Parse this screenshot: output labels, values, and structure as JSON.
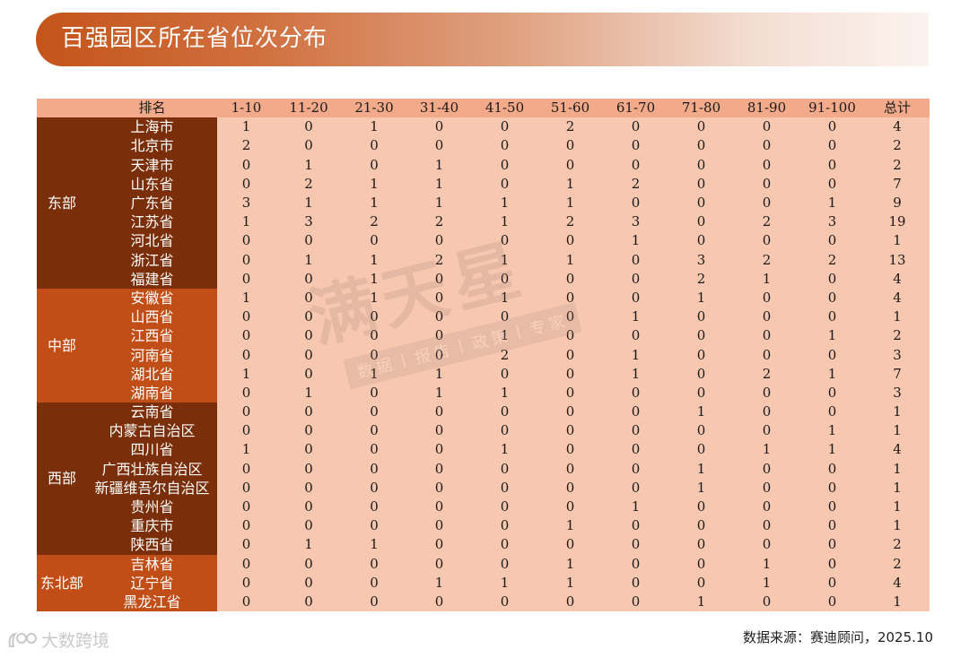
{
  "title": "百强园区所在省位次分布",
  "header": {
    "rank_label": "排名",
    "columns": [
      "1-10",
      "11-20",
      "21-30",
      "31-40",
      "41-50",
      "51-60",
      "61-70",
      "71-80",
      "81-90",
      "91-100",
      "总计"
    ]
  },
  "groups": [
    {
      "region": "东部",
      "theme": "east",
      "rows": [
        {
          "province": "上海市",
          "values": [
            "1",
            "0",
            "1",
            "0",
            "0",
            "2",
            "0",
            "0",
            "0",
            "0",
            "4"
          ]
        },
        {
          "province": "北京市",
          "values": [
            "2",
            "0",
            "0",
            "0",
            "0",
            "0",
            "0",
            "0",
            "0",
            "0",
            "2"
          ]
        },
        {
          "province": "天津市",
          "values": [
            "0",
            "1",
            "0",
            "1",
            "0",
            "0",
            "0",
            "0",
            "0",
            "0",
            "2"
          ]
        },
        {
          "province": "山东省",
          "values": [
            "0",
            "2",
            "1",
            "1",
            "0",
            "1",
            "2",
            "0",
            "0",
            "0",
            "7"
          ]
        },
        {
          "province": "广东省",
          "values": [
            "3",
            "1",
            "1",
            "1",
            "1",
            "1",
            "0",
            "0",
            "0",
            "1",
            "9"
          ]
        },
        {
          "province": "江苏省",
          "values": [
            "1",
            "3",
            "2",
            "2",
            "1",
            "2",
            "3",
            "0",
            "2",
            "3",
            "19"
          ]
        },
        {
          "province": "河北省",
          "values": [
            "0",
            "0",
            "0",
            "0",
            "0",
            "0",
            "1",
            "0",
            "0",
            "0",
            "1"
          ]
        },
        {
          "province": "浙江省",
          "values": [
            "0",
            "1",
            "1",
            "2",
            "1",
            "1",
            "0",
            "3",
            "2",
            "2",
            "13"
          ]
        },
        {
          "province": "福建省",
          "values": [
            "0",
            "0",
            "1",
            "0",
            "0",
            "0",
            "0",
            "2",
            "1",
            "0",
            "4"
          ]
        }
      ]
    },
    {
      "region": "中部",
      "theme": "central",
      "rows": [
        {
          "province": "安徽省",
          "values": [
            "1",
            "0",
            "1",
            "0",
            "1",
            "0",
            "0",
            "1",
            "0",
            "0",
            "4"
          ]
        },
        {
          "province": "山西省",
          "values": [
            "0",
            "0",
            "0",
            "0",
            "0",
            "0",
            "1",
            "0",
            "0",
            "0",
            "1"
          ]
        },
        {
          "province": "江西省",
          "values": [
            "0",
            "0",
            "0",
            "0",
            "1",
            "0",
            "0",
            "0",
            "0",
            "1",
            "2"
          ]
        },
        {
          "province": "河南省",
          "values": [
            "0",
            "0",
            "0",
            "0",
            "2",
            "0",
            "1",
            "0",
            "0",
            "0",
            "3"
          ]
        },
        {
          "province": "湖北省",
          "values": [
            "1",
            "0",
            "1",
            "1",
            "0",
            "0",
            "1",
            "0",
            "2",
            "1",
            "7"
          ]
        },
        {
          "province": "湖南省",
          "values": [
            "0",
            "1",
            "0",
            "1",
            "1",
            "0",
            "0",
            "0",
            "0",
            "0",
            "3"
          ]
        }
      ]
    },
    {
      "region": "西部",
      "theme": "west",
      "rows": [
        {
          "province": "云南省",
          "values": [
            "0",
            "0",
            "0",
            "0",
            "0",
            "0",
            "0",
            "1",
            "0",
            "0",
            "1"
          ]
        },
        {
          "province": "内蒙古自治区",
          "values": [
            "0",
            "0",
            "0",
            "0",
            "0",
            "0",
            "0",
            "0",
            "0",
            "1",
            "1"
          ]
        },
        {
          "province": "四川省",
          "values": [
            "1",
            "0",
            "0",
            "0",
            "1",
            "0",
            "0",
            "0",
            "1",
            "1",
            "4"
          ]
        },
        {
          "province": "广西壮族自治区",
          "values": [
            "0",
            "0",
            "0",
            "0",
            "0",
            "0",
            "0",
            "1",
            "0",
            "0",
            "1"
          ]
        },
        {
          "province": "新疆维吾尔自治区",
          "values": [
            "0",
            "0",
            "0",
            "0",
            "0",
            "0",
            "0",
            "1",
            "0",
            "0",
            "1"
          ]
        },
        {
          "province": "贵州省",
          "values": [
            "0",
            "0",
            "0",
            "0",
            "0",
            "0",
            "1",
            "0",
            "0",
            "0",
            "1"
          ]
        },
        {
          "province": "重庆市",
          "values": [
            "0",
            "0",
            "0",
            "0",
            "0",
            "1",
            "0",
            "0",
            "0",
            "0",
            "1"
          ]
        },
        {
          "province": "陕西省",
          "values": [
            "0",
            "1",
            "1",
            "0",
            "0",
            "0",
            "0",
            "0",
            "0",
            "0",
            "2"
          ]
        }
      ]
    },
    {
      "region": "东北部",
      "theme": "ne",
      "rows": [
        {
          "province": "吉林省",
          "values": [
            "0",
            "0",
            "0",
            "0",
            "0",
            "1",
            "0",
            "0",
            "1",
            "0",
            "2"
          ]
        },
        {
          "province": "辽宁省",
          "values": [
            "0",
            "0",
            "0",
            "1",
            "1",
            "1",
            "0",
            "0",
            "1",
            "0",
            "4"
          ]
        },
        {
          "province": "黑龙江省",
          "values": [
            "0",
            "0",
            "0",
            "0",
            "0",
            "0",
            "0",
            "1",
            "0",
            "0",
            "1"
          ]
        }
      ]
    }
  ],
  "watermark": {
    "big": "满天星",
    "small": "数据丨报告丨政策丨专家"
  },
  "source": "数据来源：赛迪顾问，2025.10",
  "logo_text": "大数跨境",
  "colors": {
    "dark_region": "#7a2f0a",
    "mid_region": "#c24e17",
    "header": "#f2aa8a",
    "cell": "#f7c7b0"
  }
}
